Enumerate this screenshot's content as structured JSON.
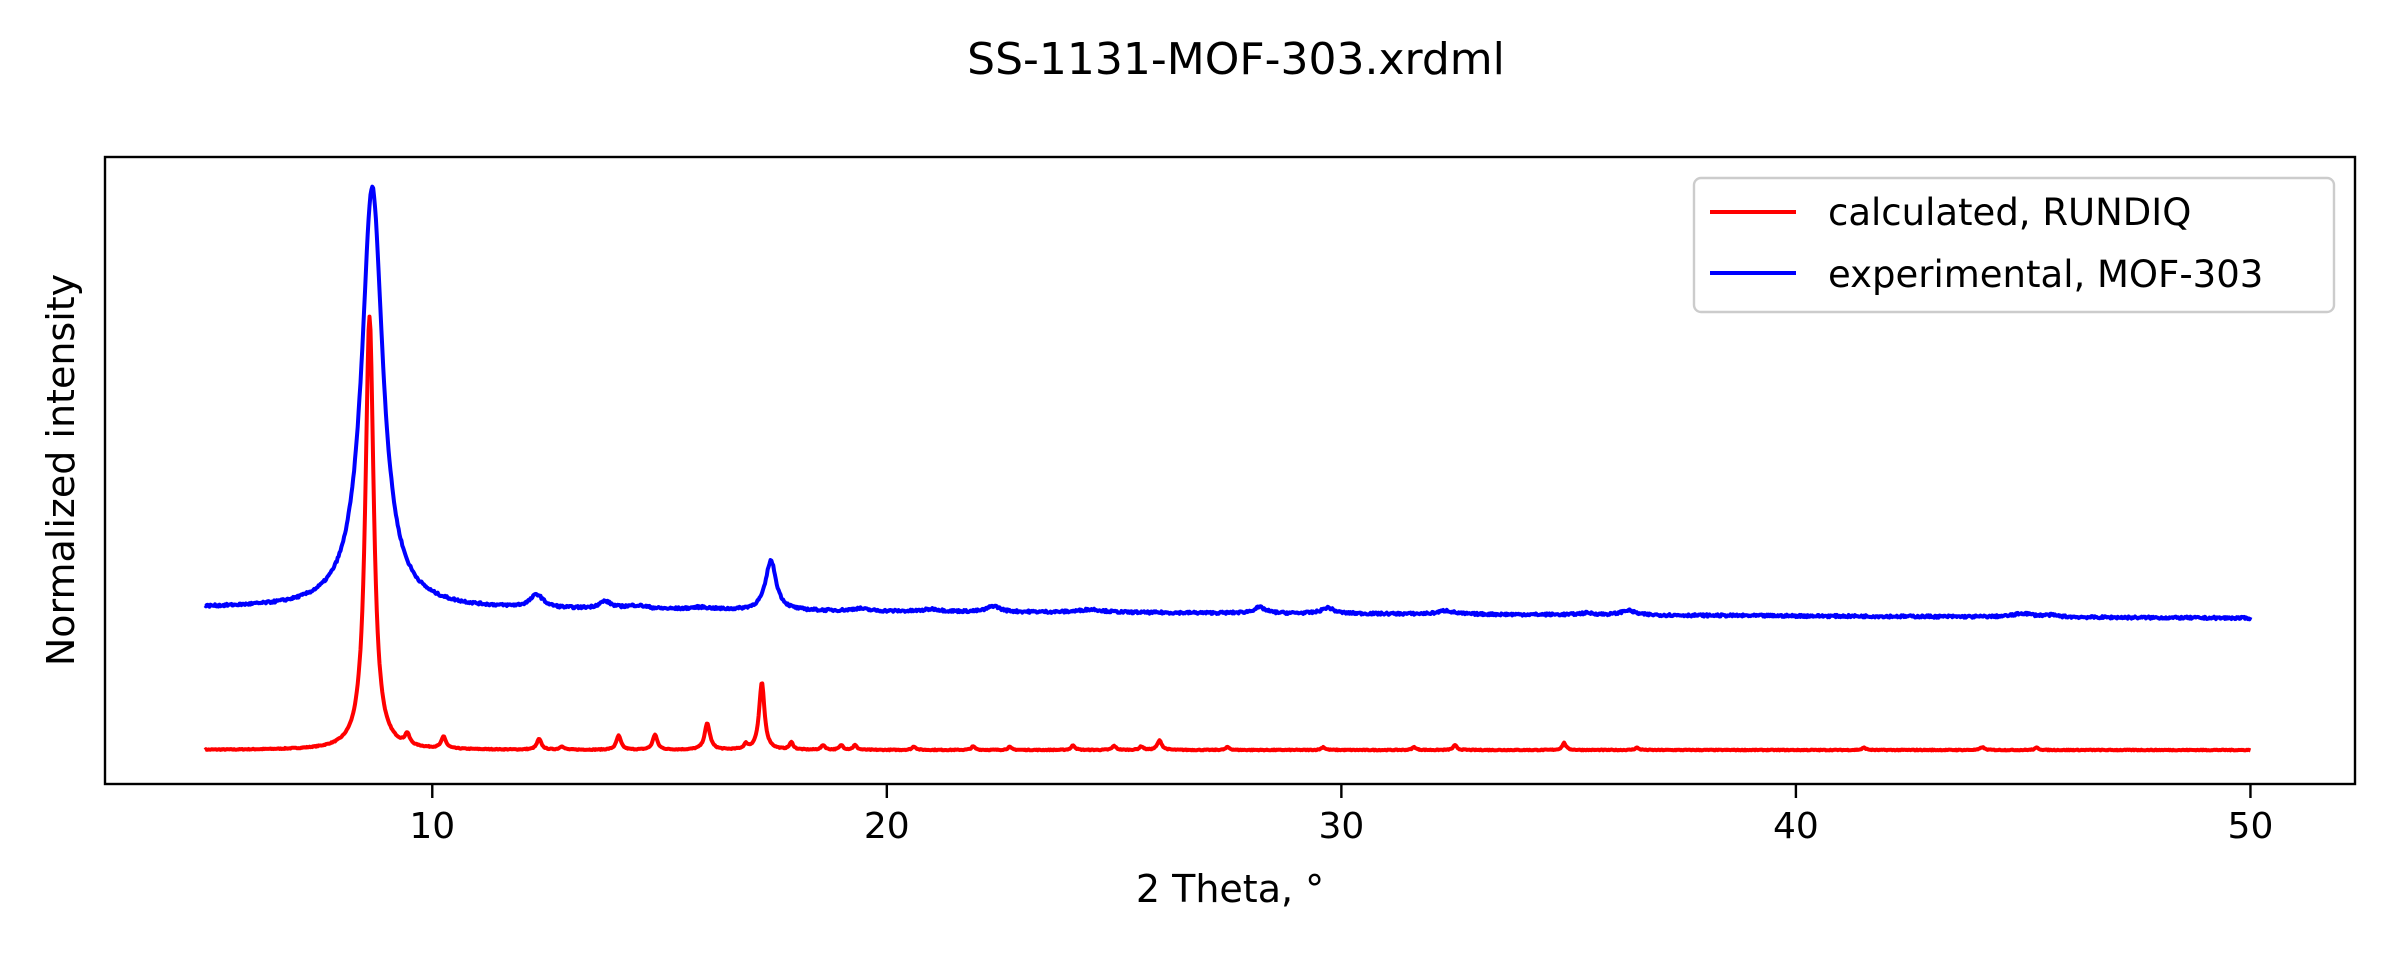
{
  "chart_data": {
    "type": "line",
    "title": "SS-1131-MOF-303.xrdml",
    "xlabel": "2 Theta, °",
    "ylabel": "Normalized intensity",
    "xlim": [
      2.8,
      52.3
    ],
    "ylim": [
      -0.05,
      1.02
    ],
    "xticks": [
      10,
      20,
      30,
      40,
      50
    ],
    "yticks_shown": false,
    "grid": false,
    "legend_position": "top-right",
    "series": [
      {
        "name": "calculated, RUNDIQ",
        "color": "#ff0000",
        "baseline": 0.008,
        "peaks": [
          [
            8.62,
            0.74,
            0.11
          ],
          [
            9.45,
            0.018,
            0.06
          ],
          [
            10.25,
            0.02,
            0.06
          ],
          [
            12.35,
            0.018,
            0.06
          ],
          [
            12.85,
            0.006,
            0.05
          ],
          [
            14.1,
            0.024,
            0.06
          ],
          [
            14.9,
            0.026,
            0.06
          ],
          [
            16.05,
            0.045,
            0.07
          ],
          [
            16.9,
            0.008,
            0.05
          ],
          [
            17.25,
            0.115,
            0.07
          ],
          [
            17.9,
            0.012,
            0.05
          ],
          [
            18.6,
            0.008,
            0.05
          ],
          [
            19.0,
            0.008,
            0.05
          ],
          [
            19.3,
            0.008,
            0.05
          ],
          [
            20.6,
            0.006,
            0.05
          ],
          [
            21.9,
            0.006,
            0.05
          ],
          [
            22.7,
            0.005,
            0.05
          ],
          [
            24.1,
            0.008,
            0.05
          ],
          [
            25.0,
            0.007,
            0.05
          ],
          [
            25.6,
            0.006,
            0.05
          ],
          [
            26.0,
            0.016,
            0.06
          ],
          [
            27.5,
            0.005,
            0.05
          ],
          [
            29.6,
            0.005,
            0.05
          ],
          [
            31.6,
            0.005,
            0.05
          ],
          [
            32.5,
            0.008,
            0.05
          ],
          [
            34.9,
            0.012,
            0.05
          ],
          [
            36.5,
            0.004,
            0.05
          ],
          [
            41.5,
            0.004,
            0.05
          ],
          [
            44.1,
            0.005,
            0.05
          ],
          [
            45.3,
            0.004,
            0.05
          ]
        ]
      },
      {
        "name": "experimental, MOF-303",
        "color": "#0000ff",
        "baseline_start": 0.25,
        "baseline_end": 0.233,
        "peaks": [
          [
            8.68,
            0.72,
            0.28
          ],
          [
            12.3,
            0.022,
            0.17
          ],
          [
            13.8,
            0.012,
            0.16
          ],
          [
            14.5,
            0.006,
            0.3
          ],
          [
            15.9,
            0.004,
            0.3
          ],
          [
            17.45,
            0.085,
            0.14
          ],
          [
            19.4,
            0.004,
            0.2
          ],
          [
            21.0,
            0.004,
            0.2
          ],
          [
            22.35,
            0.01,
            0.16
          ],
          [
            24.5,
            0.005,
            0.3
          ],
          [
            28.2,
            0.01,
            0.16
          ],
          [
            29.7,
            0.01,
            0.16
          ],
          [
            32.3,
            0.006,
            0.2
          ],
          [
            35.4,
            0.003,
            0.2
          ],
          [
            36.3,
            0.008,
            0.18
          ],
          [
            45.0,
            0.006,
            0.25
          ],
          [
            45.6,
            0.003,
            0.2
          ]
        ]
      }
    ]
  }
}
